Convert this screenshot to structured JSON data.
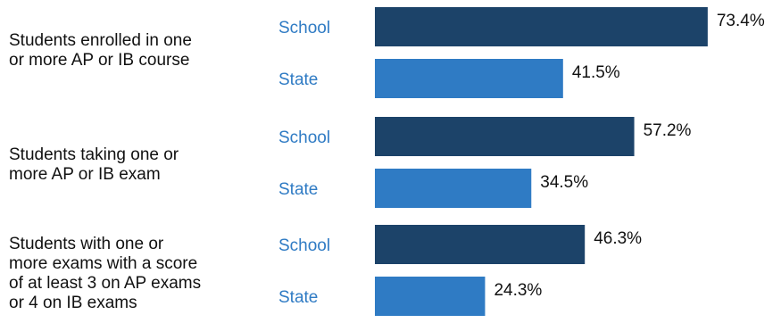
{
  "chart_data": {
    "type": "bar",
    "orientation": "horizontal",
    "categories": [
      "Students enrolled in one\nor more AP or IB course",
      "Students taking one or\nmore AP or IB exam",
      "Students with one or\nmore exams with a score\nof at least 3 on AP exams\nor 4 on IB exams"
    ],
    "series": [
      {
        "name": "School",
        "values": [
          73.4,
          57.2,
          46.3
        ],
        "color": "#1c4369"
      },
      {
        "name": "State",
        "values": [
          41.5,
          34.5,
          24.3
        ],
        "color": "#2f7bc4"
      }
    ],
    "value_suffix": "%",
    "xlim": [
      0,
      100
    ],
    "grid": false,
    "title": "",
    "xlabel": "",
    "ylabel": "",
    "label_color": "#2f7bc4"
  }
}
